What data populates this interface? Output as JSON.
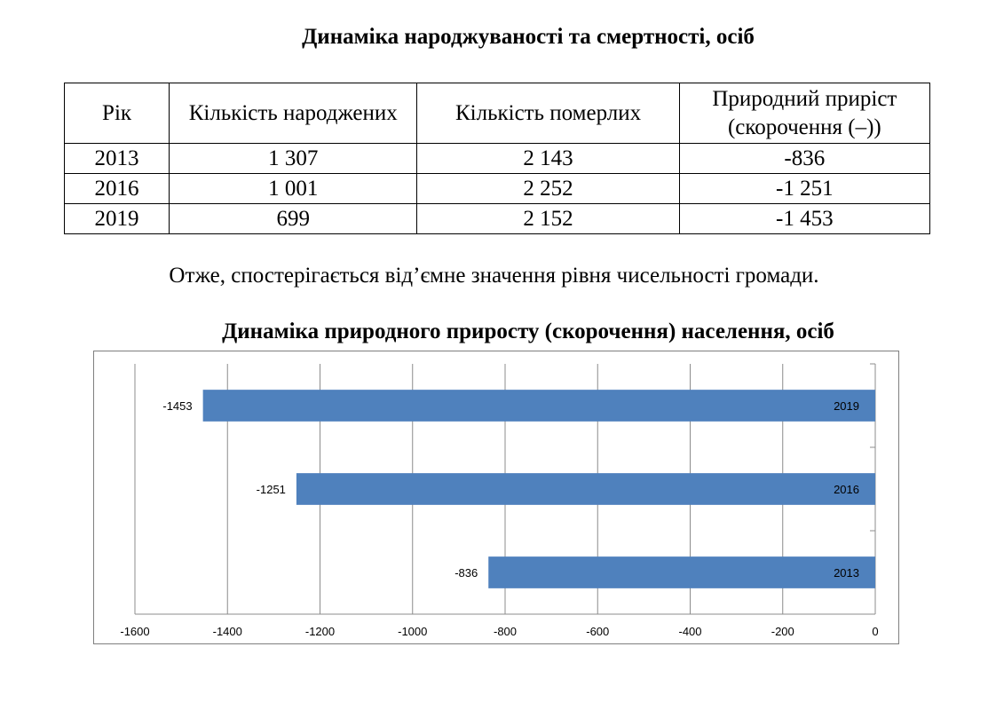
{
  "table_title": "Динаміка народжуваності та смертності, осіб",
  "table": {
    "headers": [
      "Рік",
      "Кількість народжених",
      "Кількість померлих",
      "Природний приріст (скорочення (–))"
    ],
    "rows": [
      [
        "2013",
        "1 307",
        "2 143",
        "-836"
      ],
      [
        "2016",
        "1 001",
        "2 252",
        "-1 251"
      ],
      [
        "2019",
        "699",
        "2 152",
        "-1 453"
      ]
    ]
  },
  "conclusion": "Отже, спостерігається від’ємне значення рівня чисельності громади.",
  "chart_title": "Динаміка природного приросту (скорочення) населення, осіб",
  "chart_data": {
    "type": "bar",
    "orientation": "horizontal",
    "title": "",
    "xlabel": "",
    "ylabel": "",
    "categories": [
      "2013",
      "2016",
      "2019"
    ],
    "values": [
      -836,
      -1251,
      -1453
    ],
    "xlim": [
      -1600,
      0
    ],
    "xticks": [
      "-1600",
      "-1400",
      "-1200",
      "-1000",
      "-800",
      "-600",
      "-400",
      "-200",
      "0"
    ],
    "grid": true,
    "bar_color": "#4f81bd",
    "grid_color": "#8c8c8c"
  }
}
